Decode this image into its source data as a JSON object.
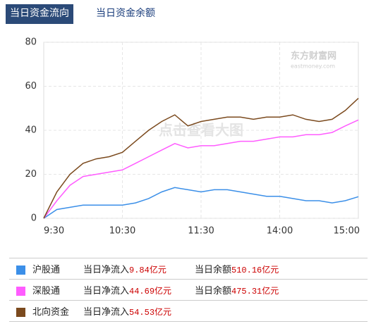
{
  "tabs": [
    "当日资金流向",
    "当日资金余额"
  ],
  "active_tab": 0,
  "chart_data": {
    "type": "line",
    "watermark": "点击查看大图",
    "logo": "东方财富网",
    "logo_sub": "eastmoney.com",
    "categories": [
      "9:30",
      null,
      null,
      null,
      null,
      null,
      "10:30",
      null,
      null,
      null,
      null,
      null,
      "11:30",
      null,
      null,
      null,
      null,
      null,
      "14:00",
      null,
      null,
      null,
      null,
      null,
      "15:00"
    ],
    "ylim": [
      0,
      80
    ],
    "yticks": [
      0,
      20,
      40,
      60,
      80
    ],
    "grid": true,
    "legend_labels": {
      "inflow": "当日净流入",
      "balance": "当日余额"
    },
    "series": [
      {
        "name": "沪股通",
        "color": "#3b8fe8",
        "values": [
          0,
          4,
          5,
          6,
          6,
          6,
          6,
          7,
          9,
          12,
          14,
          13,
          12,
          13,
          13,
          12,
          11,
          10,
          10,
          9,
          8,
          8,
          7,
          8,
          9.84
        ],
        "inflow": 9.84,
        "inflow_label": "9.84亿元",
        "balance": 510.16,
        "balance_label": "510.16亿元"
      },
      {
        "name": "深股通",
        "color": "#ff5cff",
        "values": [
          0,
          8,
          15,
          19,
          20,
          21,
          22,
          25,
          28,
          31,
          34,
          32,
          33,
          33,
          34,
          35,
          35,
          36,
          37,
          37,
          38,
          38,
          39,
          42,
          44.69
        ],
        "inflow": 44.69,
        "inflow_label": "44.69亿元",
        "balance": 475.31,
        "balance_label": "475.31亿元"
      },
      {
        "name": "北向资金",
        "color": "#7b4a1e",
        "values": [
          0,
          12,
          20,
          25,
          27,
          28,
          30,
          35,
          40,
          44,
          47,
          42,
          44,
          45,
          46,
          46,
          45,
          46,
          46,
          47,
          45,
          44,
          45,
          49,
          54.53
        ],
        "inflow": 54.53,
        "inflow_label": "54.53亿元"
      }
    ]
  }
}
